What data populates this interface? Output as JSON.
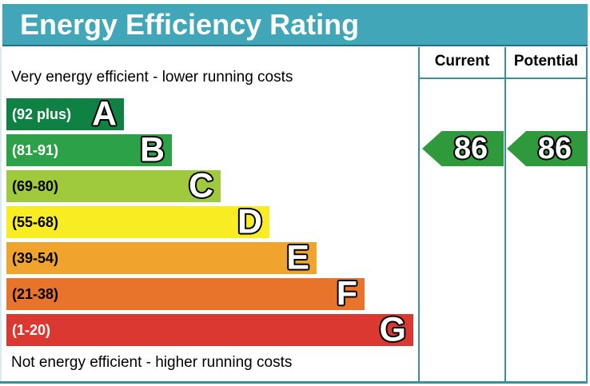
{
  "title": "Energy Efficiency Rating",
  "top_caption": "Very energy efficient - lower running costs",
  "bottom_caption": "Not energy efficient - higher running costs",
  "columns": {
    "current": "Current",
    "potential": "Potential"
  },
  "ratings": {
    "current": {
      "value": "86",
      "band": "B"
    },
    "potential": {
      "value": "86",
      "band": "B"
    }
  },
  "bands": [
    {
      "letter": "A",
      "range": "(92 plus)",
      "color": "#0e8143",
      "text_color": "#ffffff"
    },
    {
      "letter": "B",
      "range": "(81-91)",
      "color": "#2da147",
      "text_color": "#ffffff"
    },
    {
      "letter": "C",
      "range": "(69-80)",
      "color": "#9fca3d",
      "text_color": "#000000"
    },
    {
      "letter": "D",
      "range": "(55-68)",
      "color": "#f8ec22",
      "text_color": "#000000"
    },
    {
      "letter": "E",
      "range": "(39-54)",
      "color": "#f0a42e",
      "text_color": "#000000"
    },
    {
      "letter": "F",
      "range": "(21-38)",
      "color": "#e8732a",
      "text_color": "#000000"
    },
    {
      "letter": "G",
      "range": "(1-20)",
      "color": "#dc3832",
      "text_color": "#ffffff"
    }
  ],
  "colors": {
    "title_bar_bg": "#41a7b8",
    "table_border": "#36919f",
    "arrow_green": "#2f9a3c",
    "title_text": "#ffffff"
  },
  "chart_data": {
    "type": "bar",
    "title": "Energy Efficiency Rating",
    "categories": [
      "A",
      "B",
      "C",
      "D",
      "E",
      "F",
      "G"
    ],
    "band_ranges": [
      "92 plus",
      "81-91",
      "69-80",
      "55-68",
      "39-54",
      "21-38",
      "1-20"
    ],
    "band_colors": [
      "#0e8143",
      "#2da147",
      "#9fca3d",
      "#f8ec22",
      "#f0a42e",
      "#e8732a",
      "#dc3832"
    ],
    "series": [
      {
        "name": "Current",
        "values": [
          86
        ],
        "band": "B"
      },
      {
        "name": "Potential",
        "values": [
          86
        ],
        "band": "B"
      }
    ],
    "value_scale": [
      1,
      100
    ],
    "top_label": "Very energy efficient - lower running costs",
    "bottom_label": "Not energy efficient - higher running costs"
  }
}
